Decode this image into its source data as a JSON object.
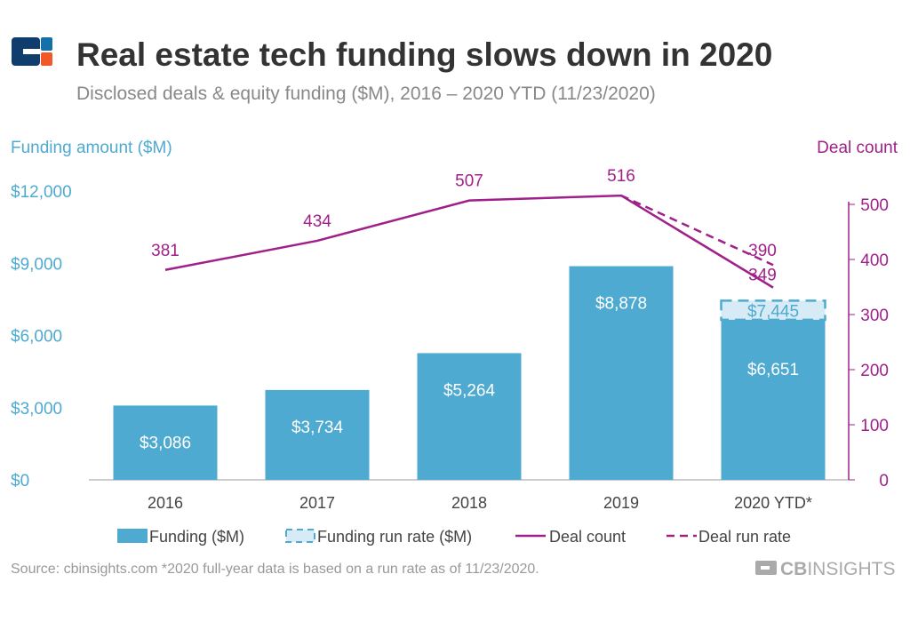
{
  "title": "Real estate tech funding slows down in 2020",
  "subtitle": "Disclosed deals & equity funding ($M), 2016 – 2020 YTD (11/23/2020)",
  "source": "Source: cbinsights.com  *2020 full-year data is based on a run rate as of 11/23/2020.",
  "brand": {
    "name": "CBINSIGHTS",
    "bold": "CB",
    "light": "INSIGHTS"
  },
  "colors": {
    "bar": "#4eaad0",
    "runrate": "#d6ebf5",
    "line": "#a0208a",
    "leftaxis": "#4eaad0",
    "title": "#333333"
  },
  "chart_data": {
    "type": "bar",
    "categories": [
      "2016",
      "2017",
      "2018",
      "2019",
      "2020 YTD*"
    ],
    "series": [
      {
        "name": "Funding ($M)",
        "values": [
          3086,
          3734,
          5264,
          8878,
          6651
        ],
        "labels": [
          "$3,086",
          "$3,734",
          "$5,264",
          "$8,878",
          "$6,651"
        ]
      },
      {
        "name": "Funding run rate ($M)",
        "values": [
          null,
          null,
          null,
          null,
          7445
        ],
        "labels": [
          "",
          "",
          "",
          "",
          "$7,445"
        ]
      },
      {
        "name": "Deal count",
        "values": [
          381,
          434,
          507,
          516,
          349
        ]
      },
      {
        "name": "Deal run rate",
        "values": [
          null,
          null,
          null,
          516,
          390
        ]
      }
    ],
    "ylabel": "Funding amount ($M)",
    "y2label": "Deal count",
    "ylim": [
      0,
      12000
    ],
    "yticks": [
      "$0",
      "$3,000",
      "$6,000",
      "$9,000",
      "$12,000"
    ],
    "ytickvals": [
      0,
      3000,
      6000,
      9000,
      12000
    ],
    "y2lim": [
      0,
      524
    ],
    "y2ticks": [
      0,
      100,
      200,
      300,
      400,
      500
    ],
    "legend_position": "bottom"
  }
}
